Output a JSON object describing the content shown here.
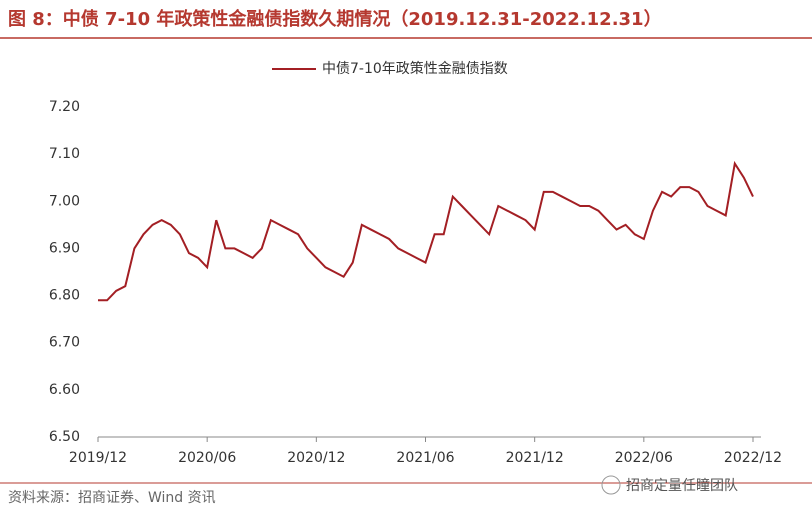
{
  "header": {
    "title": "图 8：中债 7-10 年政策性金融债指数久期情况（2019.12.31-2022.12.31）"
  },
  "chart_data": {
    "type": "line",
    "categories": [
      "2019/12",
      null,
      null,
      null,
      null,
      null,
      null,
      null,
      null,
      null,
      null,
      null,
      "2020/06",
      null,
      null,
      null,
      null,
      null,
      null,
      null,
      null,
      null,
      null,
      null,
      "2020/12",
      null,
      null,
      null,
      null,
      null,
      null,
      null,
      null,
      null,
      null,
      null,
      "2021/06",
      null,
      null,
      null,
      null,
      null,
      null,
      null,
      null,
      null,
      null,
      null,
      "2021/12",
      null,
      null,
      null,
      null,
      null,
      null,
      null,
      null,
      null,
      null,
      null,
      "2022/06",
      null,
      null,
      null,
      null,
      null,
      null,
      null,
      null,
      null,
      null,
      null,
      "2022/12"
    ],
    "series": [
      {
        "name": "中债7-10年政策性金融债指数",
        "color": "#a31f24",
        "values": [
          6.79,
          6.79,
          6.81,
          6.82,
          6.9,
          6.93,
          6.95,
          6.96,
          6.95,
          6.93,
          6.89,
          6.88,
          6.86,
          6.96,
          6.9,
          6.9,
          6.89,
          6.88,
          6.9,
          6.96,
          6.95,
          6.94,
          6.93,
          6.9,
          6.88,
          6.86,
          6.85,
          6.84,
          6.87,
          6.95,
          6.94,
          6.93,
          6.92,
          6.9,
          6.89,
          6.88,
          6.87,
          6.93,
          6.93,
          7.01,
          6.99,
          6.97,
          6.95,
          6.93,
          6.99,
          6.98,
          6.97,
          6.96,
          6.94,
          7.02,
          7.02,
          7.01,
          7.0,
          6.99,
          6.99,
          6.98,
          6.96,
          6.94,
          6.95,
          6.93,
          6.92,
          6.98,
          7.02,
          7.01,
          7.03,
          7.03,
          7.02,
          6.99,
          6.98,
          6.97,
          7.08,
          7.05,
          7.01
        ]
      }
    ],
    "ylim": [
      6.5,
      7.2
    ],
    "yticks": [
      {
        "value": 6.5,
        "label": "6.50"
      },
      {
        "value": 6.6,
        "label": "6.60"
      },
      {
        "value": 6.7,
        "label": "6.70"
      },
      {
        "value": 6.8,
        "label": "6.80"
      },
      {
        "value": 6.9,
        "label": "6.90"
      },
      {
        "value": 7.0,
        "label": "7.00"
      },
      {
        "value": 7.1,
        "label": "7.10"
      },
      {
        "value": 7.2,
        "label": "7.20"
      }
    ],
    "grid": false,
    "legend": "top"
  },
  "footer": {
    "source": "资料来源：招商证券、Wind 资讯",
    "watermark": "招商定量任瞳团队"
  }
}
